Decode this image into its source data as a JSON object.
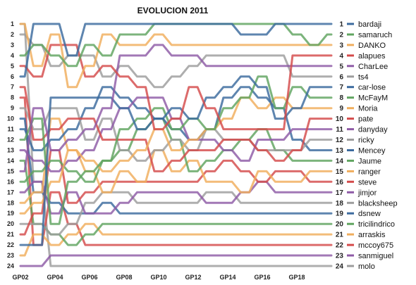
{
  "chart_data": {
    "type": "line",
    "title": "EVOLUCION 2011",
    "x": [
      "GP02",
      "GP03",
      "GP04",
      "GP05",
      "GP06",
      "GP07",
      "GP08",
      "GP09",
      "GP10",
      "GP11",
      "GP12",
      "GP13",
      "GP14",
      "GP15",
      "GP16",
      "GP17",
      "GP18",
      "GP19",
      "GP20"
    ],
    "x_tick_labels": [
      "GP02",
      "GP04",
      "GP06",
      "GP08",
      "GP10",
      "GP12",
      "GP14",
      "GP16",
      "GP18"
    ],
    "y_tick_labels": [
      "1",
      "2",
      "3",
      "4",
      "5",
      "6",
      "7",
      "8",
      "9",
      "10",
      "11",
      "12",
      "13",
      "14",
      "15",
      "16",
      "17",
      "18",
      "19",
      "20",
      "21",
      "22",
      "23",
      "24"
    ],
    "ylim": [
      1,
      24
    ],
    "y_inverted": true,
    "grid": false,
    "legend_position": "right",
    "series": [
      {
        "name": "bardaji",
        "rank": "1",
        "color": "#3b6a9e",
        "values": [
          6,
          1,
          1,
          4,
          1,
          1,
          1,
          1,
          1,
          1,
          1,
          1,
          1,
          2,
          2,
          1,
          1,
          1,
          1
        ]
      },
      {
        "name": "samaruch",
        "rank": "2",
        "color": "#5fa45f",
        "values": [
          4,
          3,
          4,
          5,
          3,
          4,
          2,
          2,
          1,
          1,
          1,
          1,
          1,
          1,
          1,
          1,
          2,
          3,
          2
        ]
      },
      {
        "name": "DANKO",
        "rank": "3",
        "color": "#f0ad5c",
        "values": [
          1,
          5,
          2,
          7,
          5,
          2,
          3,
          3,
          2,
          3,
          3,
          3,
          3,
          3,
          3,
          3,
          3,
          3,
          3
        ]
      },
      {
        "name": "alapues",
        "rank": "4",
        "color": "#d44a4a",
        "values": [
          5,
          6,
          3,
          3,
          6,
          5,
          6,
          7,
          11,
          10,
          7,
          9,
          11,
          11,
          11,
          11,
          4,
          4,
          4
        ]
      },
      {
        "name": "CharLee",
        "rank": "5",
        "color": "#8e5aa6",
        "values": [
          15,
          9,
          13,
          12,
          11,
          9,
          4,
          4,
          3,
          4,
          4,
          5,
          5,
          5,
          5,
          5,
          5,
          5,
          5
        ]
      },
      {
        "name": "ts4",
        "rank": "6",
        "color": "#9c9c9c",
        "values": [
          2,
          3,
          5,
          4,
          4,
          6,
          5,
          6,
          7,
          6,
          5,
          4,
          4,
          4,
          4,
          4,
          6,
          6,
          6
        ]
      },
      {
        "name": "car-lose",
        "rank": "7",
        "color": "#3b6a9e",
        "values": [
          22,
          22,
          8,
          8,
          8,
          8,
          9,
          11,
          10,
          9,
          10,
          8,
          7,
          6,
          7,
          10,
          9,
          7,
          7
        ]
      },
      {
        "name": "McFayM",
        "rank": "8",
        "color": "#5fa45f",
        "values": [
          12,
          10,
          20,
          16,
          15,
          14,
          11,
          10,
          9,
          11,
          10,
          11,
          9,
          8,
          6,
          9,
          7,
          8,
          8
        ]
      },
      {
        "name": "Moria",
        "rank": "9",
        "color": "#f0ad5c",
        "values": [
          19,
          18,
          16,
          13,
          14,
          15,
          14,
          13,
          11,
          13,
          12,
          11,
          10,
          8,
          9,
          8,
          9,
          9,
          9
        ]
      },
      {
        "name": "pate",
        "rank": "10",
        "color": "#d44a4a",
        "values": [
          7,
          12,
          11,
          10,
          10,
          12,
          12,
          12,
          15,
          14,
          13,
          13,
          12,
          12,
          13,
          14,
          13,
          10,
          10
        ]
      },
      {
        "name": "danyday",
        "rank": "11",
        "color": "#8e5aa6",
        "values": [
          13,
          14,
          15,
          14,
          13,
          11,
          9,
          8,
          8,
          10,
          12,
          12,
          13,
          14,
          12,
          12,
          11,
          11,
          11
        ]
      },
      {
        "name": "ricky",
        "rank": "12",
        "color": "#9c9c9c",
        "values": [
          9,
          11,
          9,
          9,
          12,
          10,
          13,
          14,
          13,
          12,
          13,
          11,
          12,
          12,
          13,
          13,
          13,
          12,
          12
        ]
      },
      {
        "name": "Mencey",
        "rank": "13",
        "color": "#3b6a9e",
        "values": [
          11,
          13,
          12,
          11,
          9,
          7,
          8,
          9,
          10,
          11,
          12,
          11,
          8,
          7,
          8,
          9,
          12,
          13,
          13
        ]
      },
      {
        "name": "Jaume",
        "rank": "14",
        "color": "#5fa45f",
        "values": [
          16,
          15,
          14,
          15,
          16,
          14,
          13,
          11,
          10,
          12,
          15,
          14,
          13,
          12,
          11,
          13,
          14,
          14,
          14
        ]
      },
      {
        "name": "ranger",
        "rank": "15",
        "color": "#f0ad5c",
        "values": [
          18,
          17,
          10,
          13,
          15,
          17,
          15,
          16,
          13,
          15,
          14,
          16,
          16,
          17,
          15,
          16,
          16,
          15,
          15
        ]
      },
      {
        "name": "steve",
        "rank": "16",
        "color": "#d44a4a",
        "values": [
          21,
          19,
          13,
          18,
          17,
          16,
          16,
          16,
          16,
          16,
          16,
          15,
          14,
          15,
          16,
          15,
          15,
          16,
          16
        ]
      },
      {
        "name": "jimjor",
        "rank": "17",
        "color": "#8e5aa6",
        "values": [
          17,
          16,
          19,
          17,
          19,
          19,
          18,
          17,
          17,
          17,
          17,
          18,
          18,
          17,
          16,
          17,
          17,
          17,
          17
        ]
      },
      {
        "name": "blacksheep",
        "rank": "18",
        "color": "#9c9c9c",
        "values": [
          20,
          20,
          21,
          20,
          18,
          17,
          17,
          18,
          18,
          18,
          18,
          17,
          17,
          18,
          18,
          18,
          18,
          18,
          18
        ]
      },
      {
        "name": "dsnew",
        "rank": "19",
        "color": "#3b6a9e",
        "values": [
          10,
          17,
          18,
          19,
          19,
          18,
          19,
          19,
          19,
          19,
          19,
          19,
          19,
          19,
          19,
          19,
          19,
          19,
          19
        ]
      },
      {
        "name": "tricilindrico",
        "rank": "20",
        "color": "#5fa45f",
        "values": [
          14,
          20,
          21,
          22,
          21,
          20,
          20,
          20,
          20,
          20,
          20,
          20,
          20,
          20,
          20,
          20,
          20,
          20,
          20
        ]
      },
      {
        "name": "arraskis",
        "rank": "21",
        "color": "#f0ad5c",
        "values": [
          23,
          21,
          22,
          21,
          20,
          21,
          21,
          21,
          21,
          21,
          21,
          21,
          21,
          21,
          21,
          21,
          21,
          21,
          21
        ]
      },
      {
        "name": "mccoy675",
        "rank": "22",
        "color": "#d44a4a",
        "values": [
          8,
          22,
          17,
          20,
          22,
          22,
          22,
          22,
          22,
          22,
          22,
          22,
          22,
          22,
          22,
          22,
          22,
          22,
          22
        ]
      },
      {
        "name": "sanmiguel",
        "rank": "23",
        "color": "#8e5aa6",
        "values": [
          24,
          24,
          23,
          23,
          23,
          23,
          23,
          23,
          23,
          23,
          23,
          23,
          23,
          23,
          23,
          23,
          23,
          23,
          23
        ]
      },
      {
        "name": "molo",
        "rank": "24",
        "color": "#9c9c9c",
        "values": [
          1,
          16,
          24,
          24,
          24,
          24,
          24,
          24,
          24,
          24,
          24,
          24,
          24,
          24,
          24,
          24,
          24,
          24,
          24
        ]
      }
    ]
  }
}
